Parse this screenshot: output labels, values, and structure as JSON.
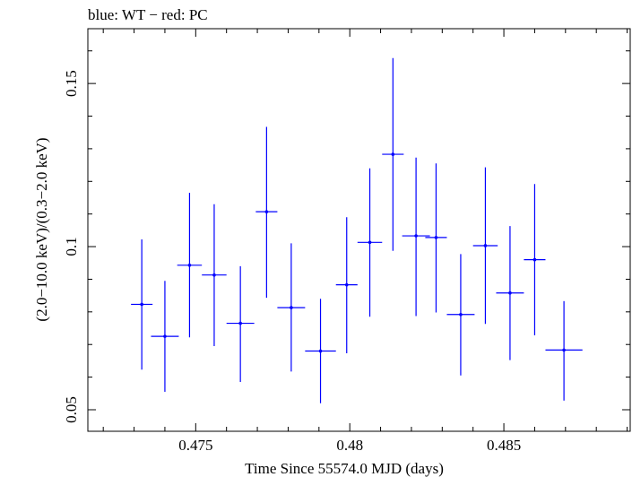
{
  "chart_data": {
    "type": "scatter",
    "title": "blue: WT − red: PC",
    "xlabel": "Time Since 55574.0 MJD (days)",
    "ylabel": "(2.0−10.0 keV)/(0.3−2.0 keV)",
    "xlim": [
      0.4715,
      0.4891
    ],
    "ylim": [
      0.0434,
      0.1668
    ],
    "xticks": [
      {
        "value": 0.475,
        "label": "0.475"
      },
      {
        "value": 0.48,
        "label": "0.48"
      },
      {
        "value": 0.485,
        "label": "0.485"
      }
    ],
    "yticks": [
      {
        "value": 0.05,
        "label": "0.05"
      },
      {
        "value": 0.1,
        "label": "0.1"
      },
      {
        "value": 0.15,
        "label": "0.15"
      }
    ],
    "x_minor_step": 0.001,
    "y_minor_step": 0.01,
    "grid": false,
    "series_color": "#0000ff",
    "points": [
      {
        "x": 0.47325,
        "y": 0.0823,
        "xerr": 0.00035,
        "ylo": 0.0623,
        "yhi": 0.1022
      },
      {
        "x": 0.474,
        "y": 0.0725,
        "xerr": 0.00045,
        "ylo": 0.0555,
        "yhi": 0.0895
      },
      {
        "x": 0.4748,
        "y": 0.0943,
        "xerr": 0.0004,
        "ylo": 0.0722,
        "yhi": 0.1165
      },
      {
        "x": 0.4756,
        "y": 0.0913,
        "xerr": 0.0004,
        "ylo": 0.0695,
        "yhi": 0.113
      },
      {
        "x": 0.47645,
        "y": 0.0765,
        "xerr": 0.00045,
        "ylo": 0.0585,
        "yhi": 0.094
      },
      {
        "x": 0.4773,
        "y": 0.1107,
        "xerr": 0.00035,
        "ylo": 0.0843,
        "yhi": 0.1367
      },
      {
        "x": 0.4781,
        "y": 0.0813,
        "xerr": 0.00045,
        "ylo": 0.0617,
        "yhi": 0.101
      },
      {
        "x": 0.47905,
        "y": 0.068,
        "xerr": 0.0005,
        "ylo": 0.052,
        "yhi": 0.084
      },
      {
        "x": 0.4799,
        "y": 0.0883,
        "xerr": 0.00035,
        "ylo": 0.0673,
        "yhi": 0.109
      },
      {
        "x": 0.48065,
        "y": 0.1013,
        "xerr": 0.0004,
        "ylo": 0.0785,
        "yhi": 0.124
      },
      {
        "x": 0.4814,
        "y": 0.1283,
        "xerr": 0.00035,
        "ylo": 0.0987,
        "yhi": 0.1578
      },
      {
        "x": 0.48215,
        "y": 0.1033,
        "xerr": 0.00045,
        "ylo": 0.0787,
        "yhi": 0.1273
      },
      {
        "x": 0.4828,
        "y": 0.1028,
        "xerr": 0.00035,
        "ylo": 0.0798,
        "yhi": 0.1255
      },
      {
        "x": 0.4836,
        "y": 0.0792,
        "xerr": 0.00045,
        "ylo": 0.0605,
        "yhi": 0.0977
      },
      {
        "x": 0.4844,
        "y": 0.1003,
        "xerr": 0.0004,
        "ylo": 0.0763,
        "yhi": 0.1243
      },
      {
        "x": 0.4852,
        "y": 0.0858,
        "xerr": 0.00045,
        "ylo": 0.0652,
        "yhi": 0.1063
      },
      {
        "x": 0.486,
        "y": 0.096,
        "xerr": 0.00035,
        "ylo": 0.0728,
        "yhi": 0.1192
      },
      {
        "x": 0.48695,
        "y": 0.0683,
        "xerr": 0.0006,
        "ylo": 0.0528,
        "yhi": 0.0833
      }
    ]
  }
}
